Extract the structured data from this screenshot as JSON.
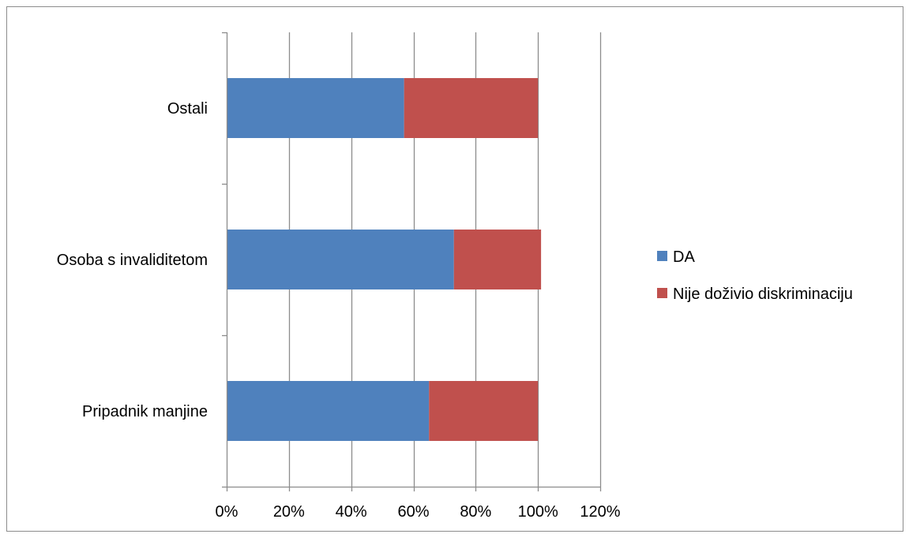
{
  "chart_data": {
    "type": "bar",
    "orientation": "horizontal",
    "stacked": true,
    "categories": [
      "Pripadnik manjine",
      "Osoba s invaliditetom",
      "Ostali"
    ],
    "series": [
      {
        "name": "DA",
        "values": [
          0.65,
          0.73,
          0.57
        ],
        "color": "#4f81bd"
      },
      {
        "name": "Nije doživio diskriminaciju",
        "values": [
          0.35,
          0.28,
          0.43
        ],
        "color": "#c0504d"
      }
    ],
    "x_ticks": [
      0,
      0.2,
      0.4,
      0.6,
      0.8,
      1.0,
      1.2
    ],
    "x_tick_labels": [
      "0%",
      "20%",
      "40%",
      "60%",
      "80%",
      "100%",
      "120%"
    ],
    "xlim": [
      0,
      1.2
    ],
    "grid": true,
    "legend_position": "right",
    "title": "",
    "xlabel": "",
    "ylabel": ""
  },
  "colors": {
    "gridline": "#8c8c8c",
    "axis": "#8c8c8c",
    "frame": "#8c8c8c"
  }
}
